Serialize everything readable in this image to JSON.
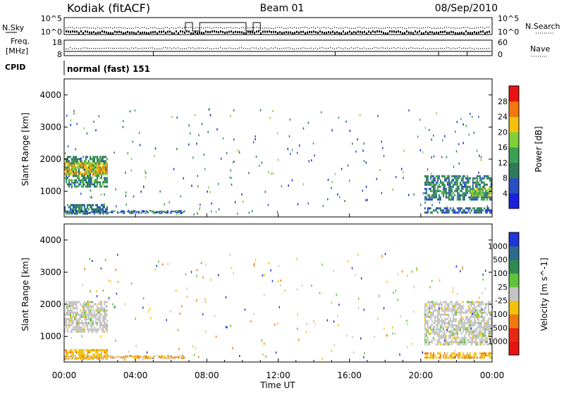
{
  "header": {
    "station": "Kodiak (fitACF)",
    "beam": "Beam 01",
    "date": "08/Sep/2010"
  },
  "noise_panel": {
    "left_label": "N.Sky",
    "right_label": "N.Search",
    "left_ticks": [
      "10^5",
      "10^0"
    ],
    "right_ticks": [
      "10^5",
      "10^0"
    ]
  },
  "freq_panel": {
    "left_label_1": "Freq.",
    "left_label_2": "[MHz]",
    "right_label": "Nave",
    "left_ticks": [
      "18",
      "8"
    ],
    "right_ticks": [
      "60",
      "0"
    ]
  },
  "cpid_panel": {
    "label": "CPID",
    "mode_text": "normal (fast) 151"
  },
  "power_panel": {
    "ylabel": "Slant Range [km]",
    "y_ticks": [
      "4000",
      "3000",
      "2000",
      "1000"
    ],
    "colorbar_label": "Power [dB]",
    "colorbar_ticks": [
      "28",
      "24",
      "20",
      "16",
      "12",
      "8",
      "4"
    ],
    "colors": [
      "#1a22e0",
      "#2a4fc0",
      "#2f7a58",
      "#3aa052",
      "#7fd03a",
      "#f3c20c",
      "#f07a0e",
      "#e81414"
    ]
  },
  "velocity_panel": {
    "ylabel": "Slant Range [km]",
    "y_ticks": [
      "4000",
      "3000",
      "2000",
      "1000"
    ],
    "colorbar_label": "Velocity [m s^-1]",
    "colorbar_ticks": [
      "1000",
      "500",
      "100",
      "25",
      "-25",
      "-100",
      "-500",
      "-1000"
    ],
    "colors": [
      "#1f36d8",
      "#2e6a8c",
      "#2f8a52",
      "#5fc23a",
      "#c4c4c4",
      "#f3c20c",
      "#f07a0e",
      "#e82a14",
      "#e81414"
    ]
  },
  "time_axis": {
    "xlabel": "Time UT",
    "ticks": [
      "00:00",
      "04:00",
      "08:00",
      "12:00",
      "16:00",
      "20:00",
      "00:00"
    ]
  },
  "chart_data": [
    {
      "type": "heatmap",
      "name": "power",
      "title": "Kodiak (fitACF) Beam 01 08/Sep/2010",
      "xlabel": "",
      "ylabel": "Slant Range [km]",
      "xlim": [
        0,
        24
      ],
      "ylim": [
        200,
        4500
      ],
      "zlabel": "Power [dB]",
      "zlim": [
        0,
        32
      ],
      "regions": [
        {
          "t0": 0.0,
          "t1": 2.5,
          "r0": 1100,
          "r1": 2100,
          "level": 12
        },
        {
          "t0": 0.0,
          "t1": 2.5,
          "r0": 1450,
          "r1": 1900,
          "level": 22
        },
        {
          "t0": 0.0,
          "t1": 2.5,
          "r0": 250,
          "r1": 600,
          "level": 9
        },
        {
          "t0": 20.2,
          "t1": 24.0,
          "r0": 700,
          "r1": 1500,
          "level": 10
        },
        {
          "t0": 22.8,
          "t1": 24.0,
          "r0": 800,
          "r1": 1100,
          "level": 18
        },
        {
          "t0": 20.2,
          "t1": 24.0,
          "r0": 250,
          "r1": 500,
          "level": 8
        }
      ]
    },
    {
      "type": "heatmap",
      "name": "velocity",
      "xlabel": "Time UT",
      "ylabel": "Slant Range [km]",
      "xlim": [
        0,
        24
      ],
      "ylim": [
        200,
        4500
      ],
      "zlabel": "Velocity [m s^-1]",
      "zlim": [
        -1000,
        1000
      ],
      "regions": [
        {
          "t0": 0.0,
          "t1": 2.5,
          "r0": 1100,
          "r1": 2100,
          "level": 0
        },
        {
          "t0": 0.0,
          "t1": 2.5,
          "r0": 250,
          "r1": 600,
          "level": -80
        },
        {
          "t0": 20.2,
          "t1": 24.0,
          "r0": 700,
          "r1": 2100,
          "level": 0
        },
        {
          "t0": 20.2,
          "t1": 24.0,
          "r0": 250,
          "r1": 500,
          "level": -90
        }
      ]
    }
  ]
}
